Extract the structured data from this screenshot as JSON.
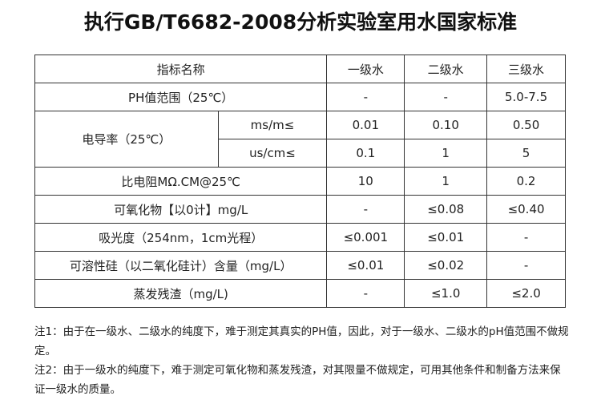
{
  "title": "执行GB/T6682-2008分析实验室用水国家标准",
  "table": {
    "header": [
      "指标名称",
      "一级水",
      "二级水",
      "三级水"
    ],
    "ph": {
      "name": "PH值范围（25℃）",
      "values": [
        "-",
        "-",
        "5.0-7.5"
      ]
    },
    "conductivity": {
      "name": "电导率（25℃）",
      "rows": [
        {
          "unit": "ms/m≤",
          "values": [
            "0.01",
            "0.10",
            "0.50"
          ]
        },
        {
          "unit": "us/cm≤",
          "values": [
            "0.1",
            "1",
            "5"
          ]
        }
      ]
    },
    "rows": [
      {
        "name": "比电阻MΩ.CM@25℃",
        "values": [
          "10",
          "1",
          "0.2"
        ]
      },
      {
        "name": "可氧化物【以0计】mg/L",
        "values": [
          "-",
          "≤0.08",
          "≤0.40"
        ]
      },
      {
        "name": "吸光度（254nm，1cm光程）",
        "values": [
          "≤0.001",
          "≤0.01",
          "-"
        ]
      },
      {
        "name": "可溶性硅（以二氧化硅计）含量（mg/L）",
        "values": [
          "≤0.01",
          "≤0.02",
          "-"
        ]
      },
      {
        "name": "蒸发残渣（mg/L)",
        "values": [
          "-",
          "≤1.0",
          "≤2.0"
        ]
      }
    ]
  },
  "notes": [
    "注1：由于在一级水、二级水的纯度下，难于测定其真实的PH值，因此，对于一级水、二级水的pH值范围不做规定。",
    "注2：由于一级水的纯度下，难于测定可氧化物和蒸发残渣，对其限量不做规定，可用其他条件和制备方法来保证一级水的质量。"
  ]
}
